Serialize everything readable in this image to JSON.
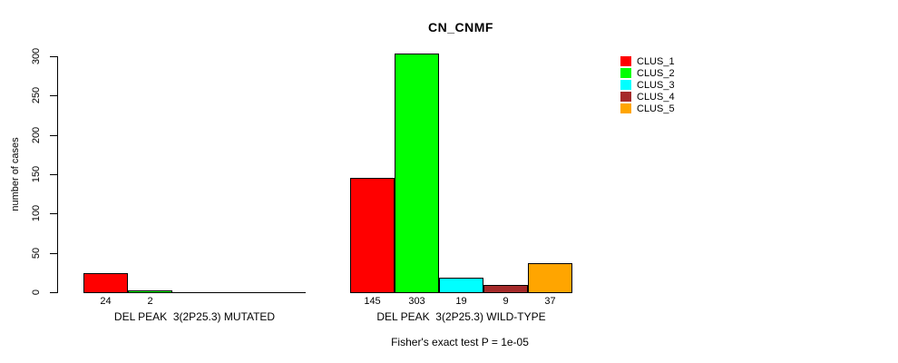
{
  "chart_data": {
    "type": "bar",
    "title": "CN_CNMF",
    "ylabel": "number of cases",
    "xlabel": "",
    "ylim": [
      0,
      300
    ],
    "yticks": [
      0,
      50,
      100,
      150,
      200,
      250,
      300
    ],
    "grid": false,
    "legend_position": "top-right",
    "categories": [
      "DEL PEAK  3(2P25.3) MUTATED",
      "DEL PEAK  3(2P25.3) WILD-TYPE"
    ],
    "series": [
      {
        "name": "CLUS_1",
        "color": "#FF0000",
        "values": [
          24,
          145
        ]
      },
      {
        "name": "CLUS_2",
        "color": "#00FF00",
        "values": [
          2,
          303
        ]
      },
      {
        "name": "CLUS_3",
        "color": "#00FFFF",
        "values": [
          0,
          19
        ]
      },
      {
        "name": "CLUS_4",
        "color": "#A52A2A",
        "values": [
          0,
          9
        ]
      },
      {
        "name": "CLUS_5",
        "color": "#FFA500",
        "values": [
          0,
          37
        ]
      }
    ],
    "bar_value_labels": [
      [
        "24",
        "2",
        "",
        "",
        ""
      ],
      [
        "145",
        "303",
        "19",
        "9",
        "37"
      ]
    ],
    "footnote": "Fisher's exact test P = 1e-05",
    "axis_color": "#000000",
    "bar_border_color": "#000000"
  }
}
